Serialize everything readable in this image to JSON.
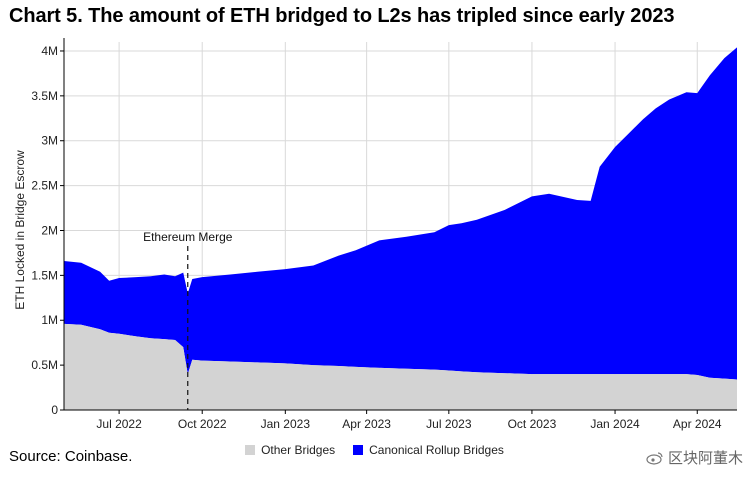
{
  "title": "Chart 5. The amount of ETH bridged to L2s has tripled since early 2023",
  "source": "Source: Coinbase.",
  "watermark": "区块阿董木",
  "colors": {
    "other": "#d3d3d3",
    "canonical": "#0000ff",
    "grid": "#d9d9d9"
  },
  "chart_data": {
    "type": "area",
    "stacked": true,
    "title": "Chart 5. The amount of ETH bridged to L2s has tripled since early 2023",
    "xlabel": "",
    "ylabel": "ETH Locked in Bridge Escrow",
    "ylim": [
      0,
      4100000
    ],
    "y_ticks": [
      0,
      500000,
      1000000,
      1500000,
      2000000,
      2500000,
      3000000,
      3500000,
      4000000
    ],
    "y_tick_labels": [
      "0",
      "0.5M",
      "1M",
      "1.5M",
      "2M",
      "2.5M",
      "3M",
      "3.5M",
      "4M"
    ],
    "x_range": [
      "2022-05-01",
      "2024-05-15"
    ],
    "x_ticks": [
      "2022-07-01",
      "2022-10-01",
      "2023-01-01",
      "2023-04-01",
      "2023-07-01",
      "2023-10-01",
      "2024-01-01",
      "2024-04-01"
    ],
    "x_tick_labels": [
      "Jul 2022",
      "Oct 2022",
      "Jan 2023",
      "Apr 2023",
      "Jul 2023",
      "Oct 2023",
      "Jan 2024",
      "Apr 2024"
    ],
    "grid": true,
    "legend_position": "bottom",
    "annotations": [
      {
        "text": "Ethereum Merge",
        "x": "2022-09-15"
      }
    ],
    "x": [
      "2022-05-01",
      "2022-05-20",
      "2022-06-10",
      "2022-06-20",
      "2022-07-01",
      "2022-07-20",
      "2022-08-05",
      "2022-08-20",
      "2022-09-01",
      "2022-09-10",
      "2022-09-15",
      "2022-09-20",
      "2022-10-01",
      "2022-11-01",
      "2022-12-01",
      "2023-01-01",
      "2023-02-01",
      "2023-03-01",
      "2023-03-20",
      "2023-04-15",
      "2023-05-15",
      "2023-06-15",
      "2023-07-01",
      "2023-07-15",
      "2023-08-01",
      "2023-09-01",
      "2023-10-01",
      "2023-10-20",
      "2023-11-20",
      "2023-12-05",
      "2023-12-15",
      "2024-01-01",
      "2024-01-15",
      "2024-02-01",
      "2024-02-15",
      "2024-03-01",
      "2024-03-20",
      "2024-04-01",
      "2024-04-15",
      "2024-05-01",
      "2024-05-15"
    ],
    "series": [
      {
        "name": "Other Bridges",
        "values": [
          960000,
          950000,
          900000,
          860000,
          850000,
          820000,
          800000,
          790000,
          780000,
          700000,
          400000,
          560000,
          550000,
          540000,
          530000,
          520000,
          500000,
          490000,
          480000,
          470000,
          460000,
          450000,
          440000,
          430000,
          420000,
          410000,
          400000,
          400000,
          400000,
          400000,
          400000,
          400000,
          400000,
          400000,
          400000,
          400000,
          400000,
          390000,
          360000,
          350000,
          340000
        ]
      },
      {
        "name": "Canonical Rollup Bridges",
        "values": [
          700000,
          690000,
          640000,
          580000,
          620000,
          660000,
          690000,
          720000,
          710000,
          830000,
          900000,
          900000,
          930000,
          970000,
          1010000,
          1050000,
          1110000,
          1230000,
          1300000,
          1420000,
          1470000,
          1530000,
          1620000,
          1650000,
          1700000,
          1820000,
          1980000,
          2010000,
          1940000,
          1930000,
          2310000,
          2530000,
          2670000,
          2840000,
          2960000,
          3060000,
          3140000,
          3140000,
          3370000,
          3570000,
          3700000
        ]
      }
    ]
  }
}
